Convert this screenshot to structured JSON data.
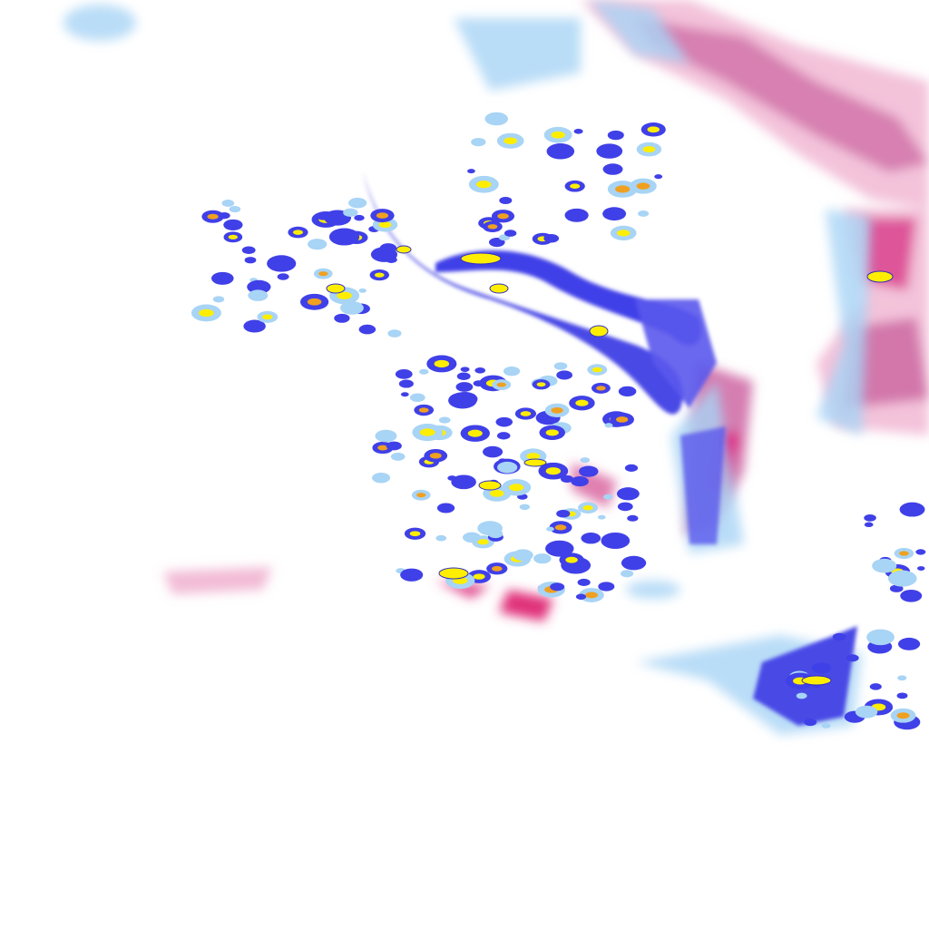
{
  "map": {
    "type": "precipitation-radar-composite",
    "colors": {
      "rain_light": "#a8d4f5",
      "rain_moderate": "#4040e8",
      "rain_heavy": "#ffee00",
      "rain_very_heavy": "#f0a020",
      "mixed_light": "#f5c0d8",
      "mixed_moderate": "#d070a8",
      "mixed_heavy": "#e0107a"
    }
  }
}
